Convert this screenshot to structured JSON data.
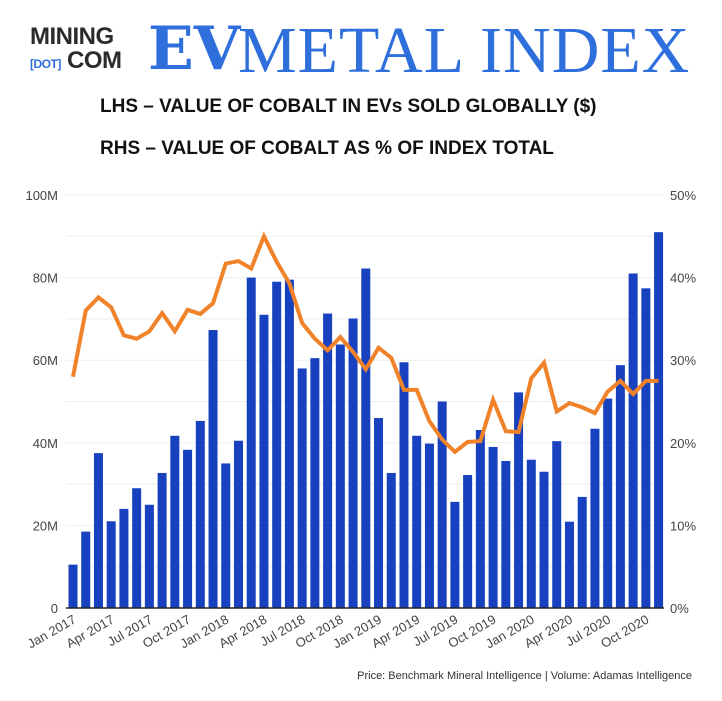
{
  "header": {
    "logo_top": "MINING",
    "logo_dot": "[DOT]",
    "logo_bottom": "COM",
    "logo_ev": "EV",
    "logo_rest": "METAL INDEX",
    "subtitle_lhs": "LHS – VALUE OF COBALT IN EVs SOLD GLOBALLY ($)",
    "subtitle_rhs": "RHS – VALUE OF COBALT AS % OF INDEX TOTAL"
  },
  "source": "Price: Benchmark Mineral Intelligence | Volume: Adamas Intelligence",
  "colors": {
    "bars": "#1741be",
    "line": "#f0822a",
    "logo": "#2e6fdc"
  },
  "chart_data": {
    "type": "bar+line",
    "grid": true,
    "y_left": {
      "min": 0,
      "max": 100,
      "unit": "M",
      "ticks": [
        "0",
        "20M",
        "40M",
        "60M",
        "80M",
        "100M"
      ]
    },
    "y_right": {
      "min": 0,
      "max": 50,
      "ticks": [
        "0%",
        "10%",
        "20%",
        "30%",
        "40%",
        "50%"
      ]
    },
    "x_tick_labels": [
      "Jan 2017",
      "Apr 2017",
      "Jul 2017",
      "Oct 2017",
      "Jan 2018",
      "Apr 2018",
      "Jul 2018",
      "Oct 2018",
      "Jan 2019",
      "Apr 2019",
      "Jul 2019",
      "Oct 2019",
      "Jan 2020",
      "Apr 2020",
      "Jul 2020",
      "Oct 2020"
    ],
    "months_start": "Jan 2017",
    "series": [
      {
        "type": "bar",
        "axis": "left",
        "values": [
          10.5,
          18.5,
          37.5,
          21,
          24,
          29,
          25,
          32.7,
          41.7,
          38.3,
          45.3,
          67.3,
          35,
          40.5,
          80,
          71,
          79,
          79.5,
          58,
          60.5,
          71.3,
          63.8,
          70.1,
          82.2,
          46,
          32.7,
          59.5,
          41.7,
          39.8,
          50,
          25.7,
          32.2,
          43.1,
          39,
          35.6,
          52.2,
          35.9,
          33,
          40.4,
          20.9,
          26.9,
          43.4,
          50.7,
          58.8,
          81,
          77.4,
          91
        ]
      },
      {
        "type": "line",
        "axis": "right",
        "values": [
          28,
          36,
          37.6,
          36.4,
          33,
          32.6,
          33.5,
          35.7,
          33.5,
          36.1,
          35.6,
          36.9,
          41.7,
          42,
          41.1,
          45,
          41.9,
          39.3,
          34.5,
          32.6,
          31.2,
          32.8,
          31,
          28.9,
          31.5,
          30.3,
          26.4,
          26.4,
          22.6,
          20.4,
          18.9,
          20.1,
          20.2,
          25.2,
          21.4,
          21.3,
          27.8,
          29.7,
          23.8,
          24.8,
          24.3,
          23.6,
          26.2,
          27.5,
          25.9,
          27.5,
          27.5
        ]
      }
    ]
  }
}
